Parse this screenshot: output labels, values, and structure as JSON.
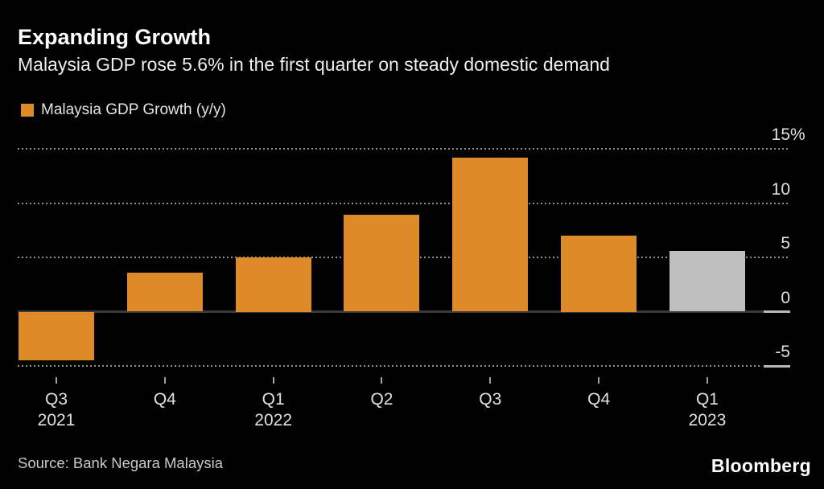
{
  "header": {
    "title": "Expanding Growth",
    "subtitle": "Malaysia GDP rose 5.6% in the first quarter on steady domestic demand"
  },
  "footer": {
    "source": "Source: Bank Negara Malaysia",
    "brand": "Bloomberg"
  },
  "colors": {
    "background": "#000000",
    "bar_accent": "#df8a28",
    "bar_highlight": "#bfbfbf",
    "grid": "#8f8f8f",
    "zero_line": "#3a3a3a",
    "axis_segment": "#b8b8b8",
    "tick": "#a0a0a0",
    "title_text": "#ffffff",
    "subtitle_text": "#ededed",
    "axis_text": "#e0e0e0",
    "source_text": "#c9c9c9"
  },
  "chart_data": {
    "type": "bar",
    "title": "Expanding Growth",
    "subtitle": "Malaysia GDP rose 5.6% in the first quarter on steady domestic demand",
    "legend_label": "Malaysia GDP Growth (y/y)",
    "legend_position": "top-left",
    "unit": "%",
    "categories": [
      "Q3 2021",
      "Q4 2021",
      "Q1 2022",
      "Q2 2022",
      "Q3 2022",
      "Q4 2022",
      "Q1 2023"
    ],
    "x_tick_labels": [
      [
        "Q3",
        "2021"
      ],
      [
        "Q4",
        ""
      ],
      [
        "Q1",
        "2022"
      ],
      [
        "Q2",
        ""
      ],
      [
        "Q3",
        ""
      ],
      [
        "Q4",
        ""
      ],
      [
        "Q1",
        "2023"
      ]
    ],
    "values": [
      -4.5,
      3.6,
      5.0,
      8.9,
      14.2,
      7.0,
      5.6
    ],
    "bar_colors": [
      "#df8a28",
      "#df8a28",
      "#df8a28",
      "#df8a28",
      "#df8a28",
      "#df8a28",
      "#bfbfbf"
    ],
    "highlighted_category": "Q1 2023",
    "baseline": 0,
    "yticks": [
      15,
      10,
      5,
      0,
      -5
    ],
    "ytick_labels": [
      "15%",
      "10",
      "5",
      "0",
      "-5"
    ],
    "ylim": [
      -6.5,
      16
    ],
    "grid": "dotted-horizontal",
    "xlabel": "",
    "ylabel": ""
  }
}
